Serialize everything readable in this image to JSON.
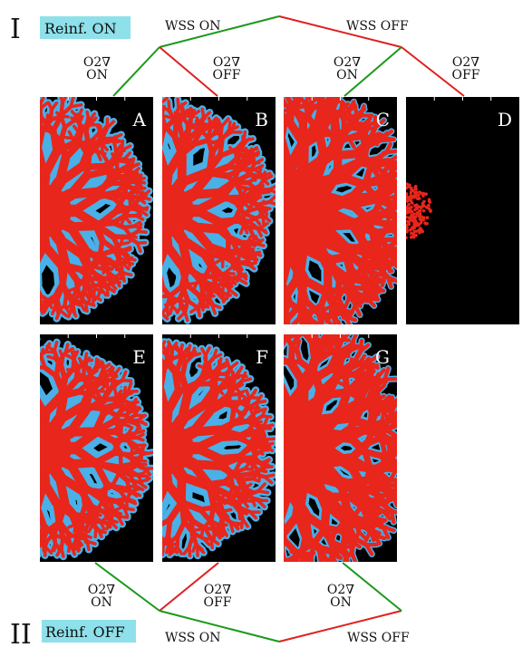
{
  "row_1": {
    "numeral": "I",
    "label": "Reinf. ON",
    "wss": [
      "WSS ON",
      "WSS OFF"
    ],
    "o2": [
      {
        "symbol": "O2∇",
        "state": "ON"
      },
      {
        "symbol": "O2∇",
        "state": "OFF"
      },
      {
        "symbol": "O2∇",
        "state": "ON"
      },
      {
        "symbol": "O2∇",
        "state": "OFF"
      }
    ]
  },
  "row_2": {
    "numeral": "II",
    "label": "Reinf. OFF",
    "wss": [
      "WSS ON",
      "WSS OFF"
    ],
    "o2": [
      {
        "symbol": "O2∇",
        "state": "ON"
      },
      {
        "symbol": "O2∇",
        "state": "OFF"
      },
      {
        "symbol": "O2∇",
        "state": "ON"
      }
    ]
  },
  "panels": [
    "A",
    "B",
    "C",
    "D",
    "E",
    "F",
    "G"
  ]
}
